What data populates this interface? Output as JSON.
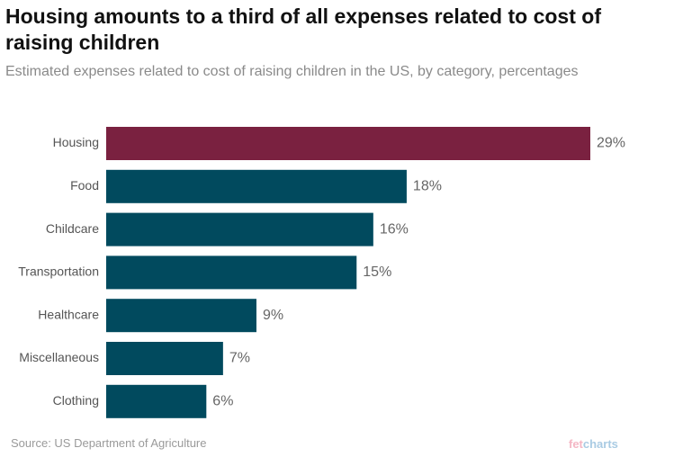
{
  "header": {
    "title": "Housing amounts to a third of all expenses related to cost of raising children",
    "subtitle": "Estimated expenses related to cost of raising children in the US, by category, percentages"
  },
  "footer": {
    "source": "Source: US Department of Agriculture",
    "brand_part1": "fet",
    "brand_part2": "charts"
  },
  "colors": {
    "highlight": "#7a2140",
    "bar": "#014a5e"
  },
  "chart_data": {
    "type": "bar",
    "orientation": "horizontal",
    "title": "Housing amounts to a third of all expenses related to cost of raising children",
    "subtitle": "Estimated expenses related to cost of raising children in the US, by category, percentages",
    "xlabel": "",
    "ylabel": "",
    "categories": [
      "Housing",
      "Food",
      "Childcare",
      "Transportation",
      "Healthcare",
      "Miscellaneous",
      "Clothing"
    ],
    "values": [
      29,
      18,
      16,
      15,
      9,
      7,
      6
    ],
    "value_labels": [
      "29%",
      "18%",
      "16%",
      "15%",
      "9%",
      "7%",
      "6%"
    ],
    "highlight_index": 0,
    "xlim": [
      0,
      29
    ],
    "grid": false,
    "legend": "none"
  }
}
